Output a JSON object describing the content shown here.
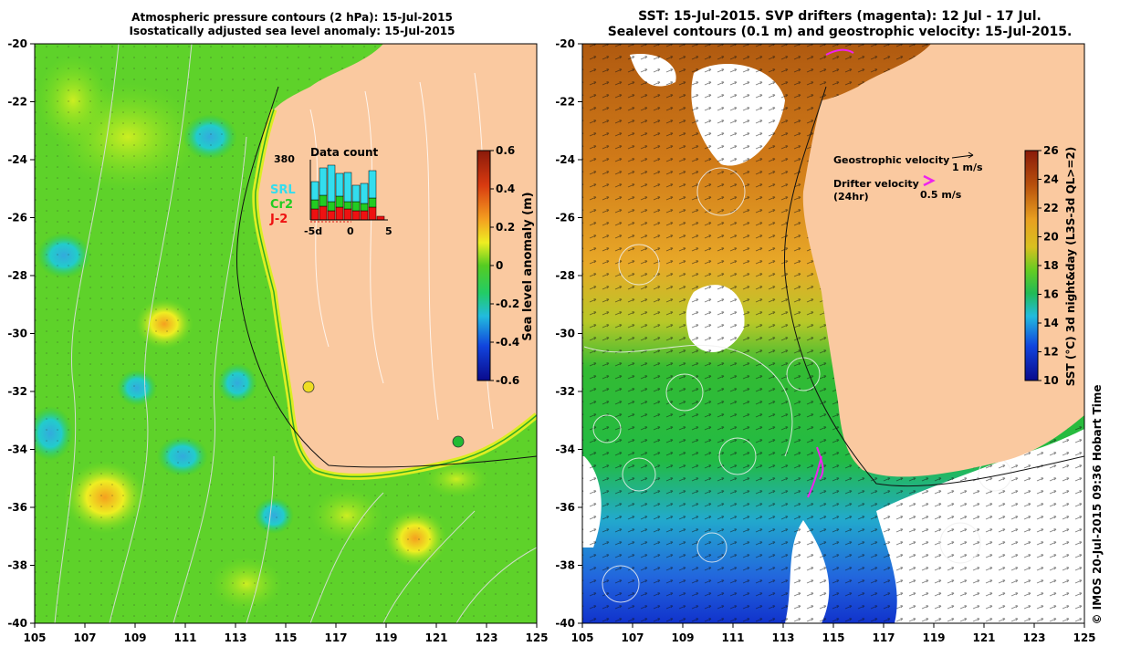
{
  "left_panel": {
    "title_line1": "Atmospheric pressure contours (2 hPa): 15-Jul-2015",
    "title_line2": "Isostatically adjusted sea level anomaly: 15-Jul-2015",
    "x_ticks": [
      "105",
      "107",
      "109",
      "111",
      "113",
      "115",
      "117",
      "119",
      "121",
      "123",
      "125"
    ],
    "y_ticks": [
      "-20",
      "-22",
      "-24",
      "-26",
      "-28",
      "-30",
      "-32",
      "-34",
      "-36",
      "-38",
      "-40"
    ],
    "colorbar": {
      "label": "Sea level anomaly (m)",
      "ticks": [
        "0.6",
        "0.4",
        "0.2",
        "0",
        "-0.2",
        "-0.4",
        "-0.6"
      ]
    },
    "inset": {
      "title": "Data count",
      "max_label": "380",
      "x_ticks": [
        "-5d",
        "0",
        "5"
      ],
      "legend": [
        {
          "name": "SRL",
          "color": "#33ddee"
        },
        {
          "name": "Cr2",
          "color": "#22cc22"
        },
        {
          "name": "J-2",
          "color": "#ee1111"
        }
      ]
    }
  },
  "right_panel": {
    "title_line1": "SST: 15-Jul-2015. SVP drifters (magenta): 12 Jul - 17 Jul.",
    "title_line2": "Sealevel contours (0.1 m) and geostrophic velocity: 15-Jul-2015.",
    "x_ticks": [
      "105",
      "107",
      "109",
      "111",
      "113",
      "115",
      "117",
      "119",
      "121",
      "123",
      "125"
    ],
    "y_ticks": [
      "-20",
      "-22",
      "-24",
      "-26",
      "-28",
      "-30",
      "-32",
      "-34",
      "-36",
      "-38",
      "-40"
    ],
    "colorbar": {
      "label": "SST (°C) 3d night&day (L3S-3d QL>=2)",
      "ticks": [
        "26",
        "24",
        "22",
        "20",
        "18",
        "16",
        "14",
        "12",
        "10"
      ]
    },
    "legend": {
      "geostrophic_label": "Geostrophic velocity",
      "geostrophic_scale": "1 m/s",
      "drifter_label_line1": "Drifter velocity",
      "drifter_label_line2": "(24hr)",
      "drifter_scale": "0.5 m/s"
    }
  },
  "copyright": "© IMOS 20-Jul-2015 09:36 Hobart Time",
  "colors": {
    "land": "#fac9a0",
    "sla_scale": [
      "#0a0a8c",
      "#1144dd",
      "#22bbdd",
      "#22cc44",
      "#77dd22",
      "#eeee22",
      "#f4a020",
      "#d83a10",
      "#8a1a0a"
    ],
    "sst_scale": [
      "#0a0a8c",
      "#1144dd",
      "#22bbdd",
      "#22cc44",
      "#88cc22",
      "#e8a020",
      "#cc6a10",
      "#a0400a",
      "#8a1a0a"
    ]
  }
}
